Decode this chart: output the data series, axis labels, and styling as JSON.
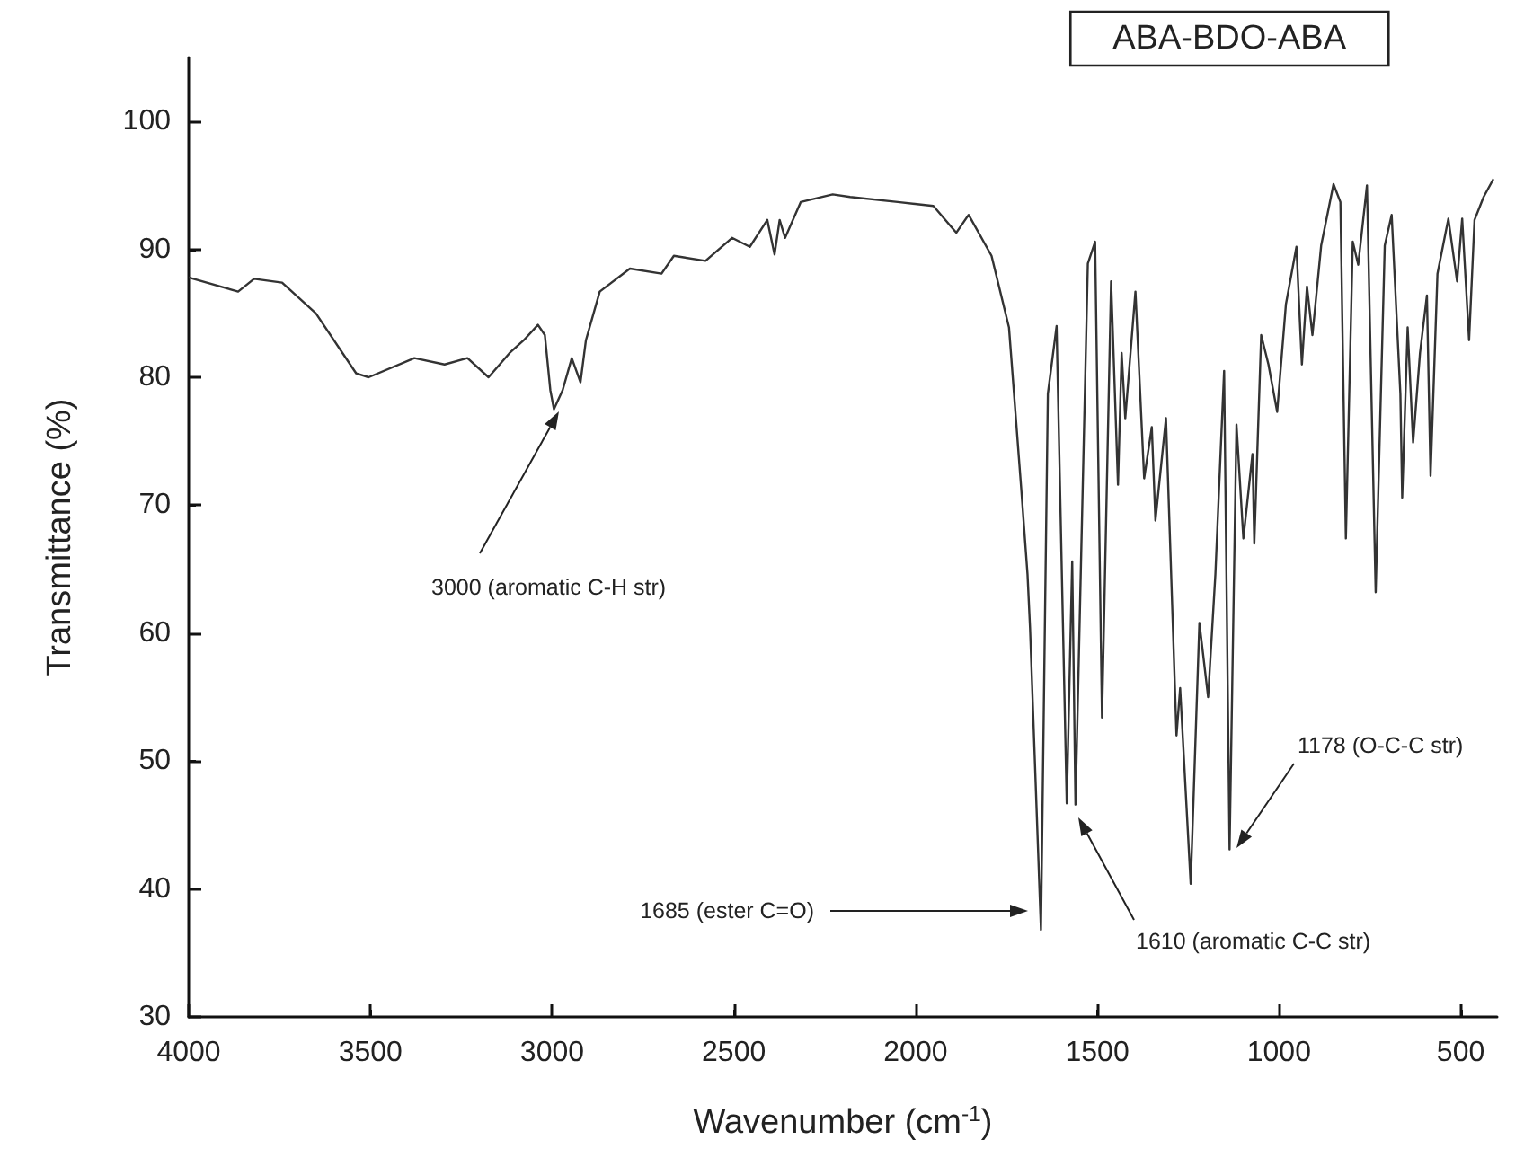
{
  "chart_data": {
    "type": "line",
    "title": "ABA-BDO-ABA",
    "xlabel": "Wavenumber (cm$^{-1}$)",
    "ylabel": "Transmittance (%)",
    "xlim": [
      4000,
      400
    ],
    "xticks": [
      4000,
      3500,
      3000,
      2500,
      2000,
      1500,
      1000,
      500
    ],
    "ylim": [
      30,
      105
    ],
    "yticks": [
      30,
      40,
      50,
      60,
      70,
      80,
      90,
      100
    ],
    "grid": false,
    "marker": "none",
    "series": [
      {
        "color": "#333333",
        "x": [
          4000,
          3864,
          3820,
          3743,
          3650,
          3539,
          3505,
          3379,
          3296,
          3233,
          3175,
          3117,
          3078,
          3039,
          3020,
          3005,
          2995,
          2971,
          2946,
          2922,
          2907,
          2869,
          2786,
          2699,
          2665,
          2578,
          2505,
          2456,
          2408,
          2388,
          2374,
          2359,
          2316,
          2228,
          2180,
          2049,
          1951,
          1888,
          1854,
          1791,
          1743,
          1709,
          1692,
          1685,
          1655,
          1636,
          1612,
          1584,
          1569,
          1560,
          1526,
          1506,
          1487,
          1462,
          1443,
          1433,
          1423,
          1395,
          1371,
          1350,
          1340,
          1311,
          1282,
          1272,
          1243,
          1219,
          1195,
          1175,
          1151,
          1136,
          1117,
          1098,
          1073,
          1068,
          1049,
          1029,
          1005,
          981,
          952,
          937,
          923,
          908,
          884,
          850,
          831,
          816,
          797,
          782,
          758,
          734,
          709,
          690,
          666,
          661,
          646,
          631,
          612,
          593,
          583,
          564,
          534,
          510,
          496,
          477,
          462,
          437,
          410
        ],
        "values": [
          87.8,
          86.7,
          87.7,
          87.4,
          85,
          80.3,
          80,
          81.5,
          81,
          81.5,
          80,
          81.9,
          82.9,
          84.1,
          83.3,
          79,
          77.5,
          79,
          81.5,
          79.6,
          82.9,
          86.7,
          88.5,
          88.1,
          89.5,
          89.1,
          90.9,
          90.2,
          92.3,
          89.6,
          92.3,
          90.9,
          93.7,
          94.3,
          94.1,
          93.7,
          93.4,
          91.3,
          92.7,
          89.5,
          83.9,
          71.2,
          64.6,
          60.4,
          36.8,
          78.7,
          84,
          46.7,
          65.6,
          46.6,
          88.9,
          90.6,
          53.4,
          87.5,
          71.6,
          81.9,
          76.8,
          86.7,
          72.1,
          76.1,
          68.8,
          76.8,
          52,
          55.7,
          40.4,
          60.8,
          55,
          64.6,
          80.5,
          43.1,
          76.3,
          67.4,
          74,
          67,
          83.3,
          81,
          77.3,
          85.7,
          90.2,
          81,
          87.1,
          83.3,
          90.3,
          95.1,
          93.7,
          67.4,
          90.6,
          88.8,
          95,
          63.2,
          90.3,
          92.7,
          78.7,
          70.6,
          83.9,
          74.9,
          81.9,
          86.4,
          72.3,
          88.1,
          92.4,
          87.5,
          92.4,
          82.9,
          92.3,
          94.1,
          95.5
        ]
      }
    ],
    "annotations": [
      "3000 (aromatic C-H str)",
      "1685 (ester C=O)",
      "1610 (aromatic C-C str)",
      "1178 (O-C-C str)"
    ]
  }
}
